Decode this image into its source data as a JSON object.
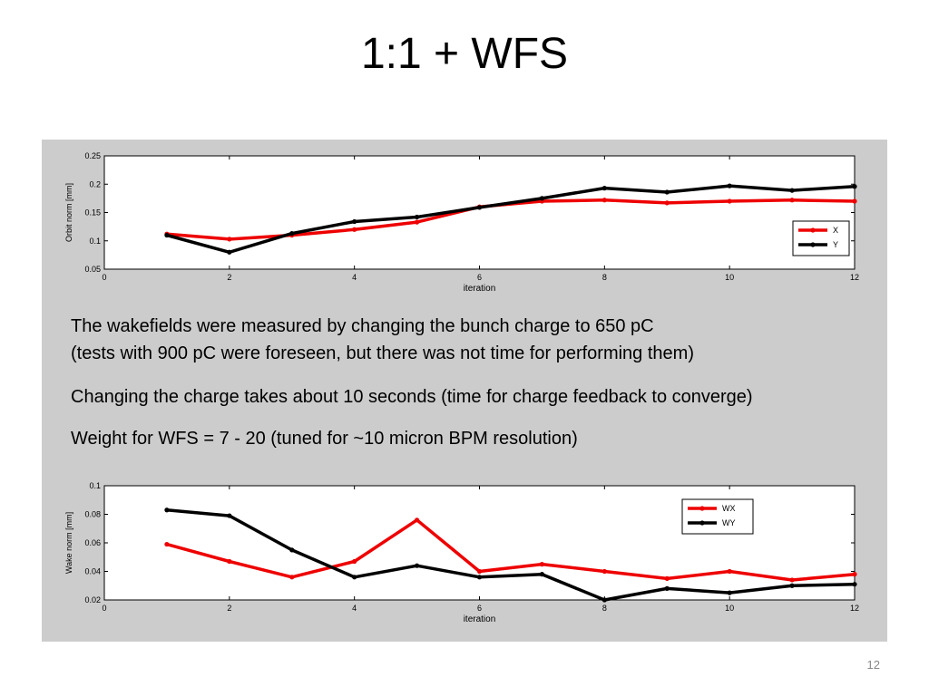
{
  "slide": {
    "title": "1:1 + WFS",
    "page_number": "12",
    "text_lines": [
      "The wakefields were measured by changing the bunch charge to 650 pC",
      "(tests with 900 pC were foreseen, but there was not time for performing them)",
      "Changing the charge takes about 10 seconds (time for charge feedback to converge)",
      "Weight for WFS = 7 - 20    (tuned for ~10 micron BPM resolution)"
    ]
  },
  "colors": {
    "red": "#ee0000",
    "black": "#000000",
    "panel": "#cccccc"
  },
  "chart_data": [
    {
      "type": "line",
      "title": "",
      "xlabel": "iteration",
      "ylabel": "Orbit norm [mm]",
      "xlim": [
        0,
        12
      ],
      "ylim": [
        0.05,
        0.25
      ],
      "xticks": [
        "0",
        "2",
        "4",
        "6",
        "8",
        "10",
        "12"
      ],
      "yticks": [
        "0.05",
        "0.1",
        "0.15",
        "0.2",
        "0.25"
      ],
      "legend_position": "bottom-right",
      "grid": false,
      "x": [
        1,
        2,
        3,
        4,
        5,
        6,
        7,
        8,
        9,
        10,
        11,
        12
      ],
      "series": [
        {
          "name": "X",
          "color": "#ee0000",
          "values": [
            0.112,
            0.103,
            0.11,
            0.12,
            0.133,
            0.16,
            0.17,
            0.172,
            0.167,
            0.17,
            0.172,
            0.17
          ]
        },
        {
          "name": "Y",
          "color": "#000000",
          "values": [
            0.11,
            0.08,
            0.113,
            0.134,
            0.142,
            0.159,
            0.175,
            0.193,
            0.186,
            0.197,
            0.189,
            0.196
          ]
        }
      ]
    },
    {
      "type": "line",
      "title": "",
      "xlabel": "iteration",
      "ylabel": "Wake norm [mm]",
      "xlim": [
        0,
        12
      ],
      "ylim": [
        0.02,
        0.1
      ],
      "xticks": [
        "0",
        "2",
        "4",
        "6",
        "8",
        "10",
        "12"
      ],
      "yticks": [
        "0.02",
        "0.04",
        "0.06",
        "0.08",
        "0.1"
      ],
      "legend_position": "top-right",
      "grid": false,
      "x": [
        1,
        2,
        3,
        4,
        5,
        6,
        7,
        8,
        9,
        10,
        11,
        12
      ],
      "series": [
        {
          "name": "WX",
          "color": "#ee0000",
          "values": [
            0.059,
            0.047,
            0.036,
            0.047,
            0.076,
            0.04,
            0.045,
            0.04,
            0.035,
            0.04,
            0.034,
            0.038
          ]
        },
        {
          "name": "WY",
          "color": "#000000",
          "values": [
            0.083,
            0.079,
            0.055,
            0.036,
            0.044,
            0.036,
            0.038,
            0.02,
            0.028,
            0.025,
            0.03,
            0.031
          ]
        }
      ]
    }
  ]
}
